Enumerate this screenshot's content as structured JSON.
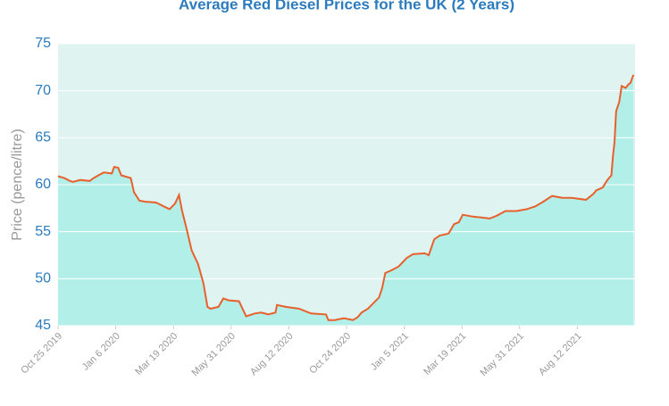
{
  "chart_data": {
    "type": "area",
    "title": "Average Red Diesel Prices for the UK (2 Years)",
    "y_label": "Price (pence/litre)",
    "color": "#e8602c",
    "fill": "#b2efe9",
    "background": "#dff3f1",
    "grid": true,
    "ylim": [
      45,
      75
    ],
    "yticks": [
      45,
      50,
      55,
      60,
      65,
      70,
      75
    ],
    "xlim": [
      "2019-10-25",
      "2021-10-24"
    ],
    "xticks": [
      {
        "value": "2019-10-25",
        "label": "Oct 25 2019"
      },
      {
        "value": "2020-01-06",
        "label": "Jan 6 2020"
      },
      {
        "value": "2020-03-19",
        "label": "Mar 19 2020"
      },
      {
        "value": "2020-05-31",
        "label": "May 31 2020"
      },
      {
        "value": "2020-08-12",
        "label": "Aug 12 2020"
      },
      {
        "value": "2020-10-24",
        "label": "Oct 24 2020"
      },
      {
        "value": "2021-01-05",
        "label": "Jan 5 2021"
      },
      {
        "value": "2021-03-19",
        "label": "Mar 19 2021"
      },
      {
        "value": "2021-05-31",
        "label": "May 31 2021"
      },
      {
        "value": "2021-08-12",
        "label": "Aug 12 2021"
      }
    ],
    "x": [
      "2019-10-25",
      "2019-11-02",
      "2019-11-09",
      "2019-11-13",
      "2019-11-22",
      "2019-12-04",
      "2019-12-09",
      "2019-12-15",
      "2019-12-22",
      "2020-01-01",
      "2020-01-04",
      "2020-01-09",
      "2020-01-13",
      "2020-01-25",
      "2020-01-29",
      "2020-02-05",
      "2020-02-12",
      "2020-02-26",
      "2020-03-09",
      "2020-03-14",
      "2020-03-21",
      "2020-03-26",
      "2020-03-30",
      "2020-04-05",
      "2020-04-11",
      "2020-04-19",
      "2020-04-26",
      "2020-05-01",
      "2020-05-05",
      "2020-05-15",
      "2020-05-21",
      "2020-05-28",
      "2020-06-10",
      "2020-06-19",
      "2020-06-30",
      "2020-07-08",
      "2020-07-17",
      "2020-07-26",
      "2020-07-28",
      "2020-08-08",
      "2020-08-25",
      "2020-09-09",
      "2020-09-28",
      "2020-10-01",
      "2020-10-09",
      "2020-10-21",
      "2020-11-01",
      "2020-11-07",
      "2020-11-12",
      "2020-11-20",
      "2020-11-27",
      "2020-12-04",
      "2020-12-08",
      "2020-12-12",
      "2020-12-20",
      "2020-12-29",
      "2021-01-08",
      "2021-01-16",
      "2021-01-31",
      "2021-02-05",
      "2021-02-12",
      "2021-02-19",
      "2021-03-02",
      "2021-03-09",
      "2021-03-15",
      "2021-03-20",
      "2021-04-02",
      "2021-04-14",
      "2021-04-23",
      "2021-05-02",
      "2021-05-13",
      "2021-05-27",
      "2021-06-09",
      "2021-06-20",
      "2021-06-30",
      "2021-07-11",
      "2021-07-24",
      "2021-08-05",
      "2021-08-23",
      "2021-09-01",
      "2021-09-05",
      "2021-09-13",
      "2021-09-19",
      "2021-09-24",
      "2021-09-26",
      "2021-09-28",
      "2021-09-30",
      "2021-10-04",
      "2021-10-07",
      "2021-10-12",
      "2021-10-16",
      "2021-10-18",
      "2021-10-22"
    ],
    "values": [
      60.9,
      60.7,
      60.4,
      60.3,
      60.5,
      60.4,
      60.7,
      61.0,
      61.3,
      61.2,
      61.9,
      61.8,
      61.0,
      60.7,
      59.2,
      58.3,
      58.2,
      58.1,
      57.6,
      57.4,
      58.0,
      58.9,
      57.2,
      55.2,
      53.0,
      51.6,
      49.5,
      47.0,
      46.8,
      47.0,
      47.9,
      47.7,
      47.6,
      46.0,
      46.3,
      46.4,
      46.2,
      46.4,
      47.2,
      47.0,
      46.8,
      46.3,
      46.2,
      45.6,
      45.6,
      45.8,
      45.6,
      45.9,
      46.4,
      46.8,
      47.4,
      48.0,
      49.0,
      50.6,
      50.9,
      51.3,
      52.2,
      52.6,
      52.7,
      52.5,
      54.2,
      54.6,
      54.8,
      55.8,
      56.0,
      56.8,
      56.6,
      56.5,
      56.4,
      56.7,
      57.2,
      57.2,
      57.4,
      57.7,
      58.2,
      58.8,
      58.6,
      58.6,
      58.4,
      59.0,
      59.4,
      59.7,
      60.5,
      61.0,
      63.0,
      64.5,
      67.8,
      68.8,
      70.5,
      70.3,
      70.7,
      70.8,
      71.7
    ]
  }
}
